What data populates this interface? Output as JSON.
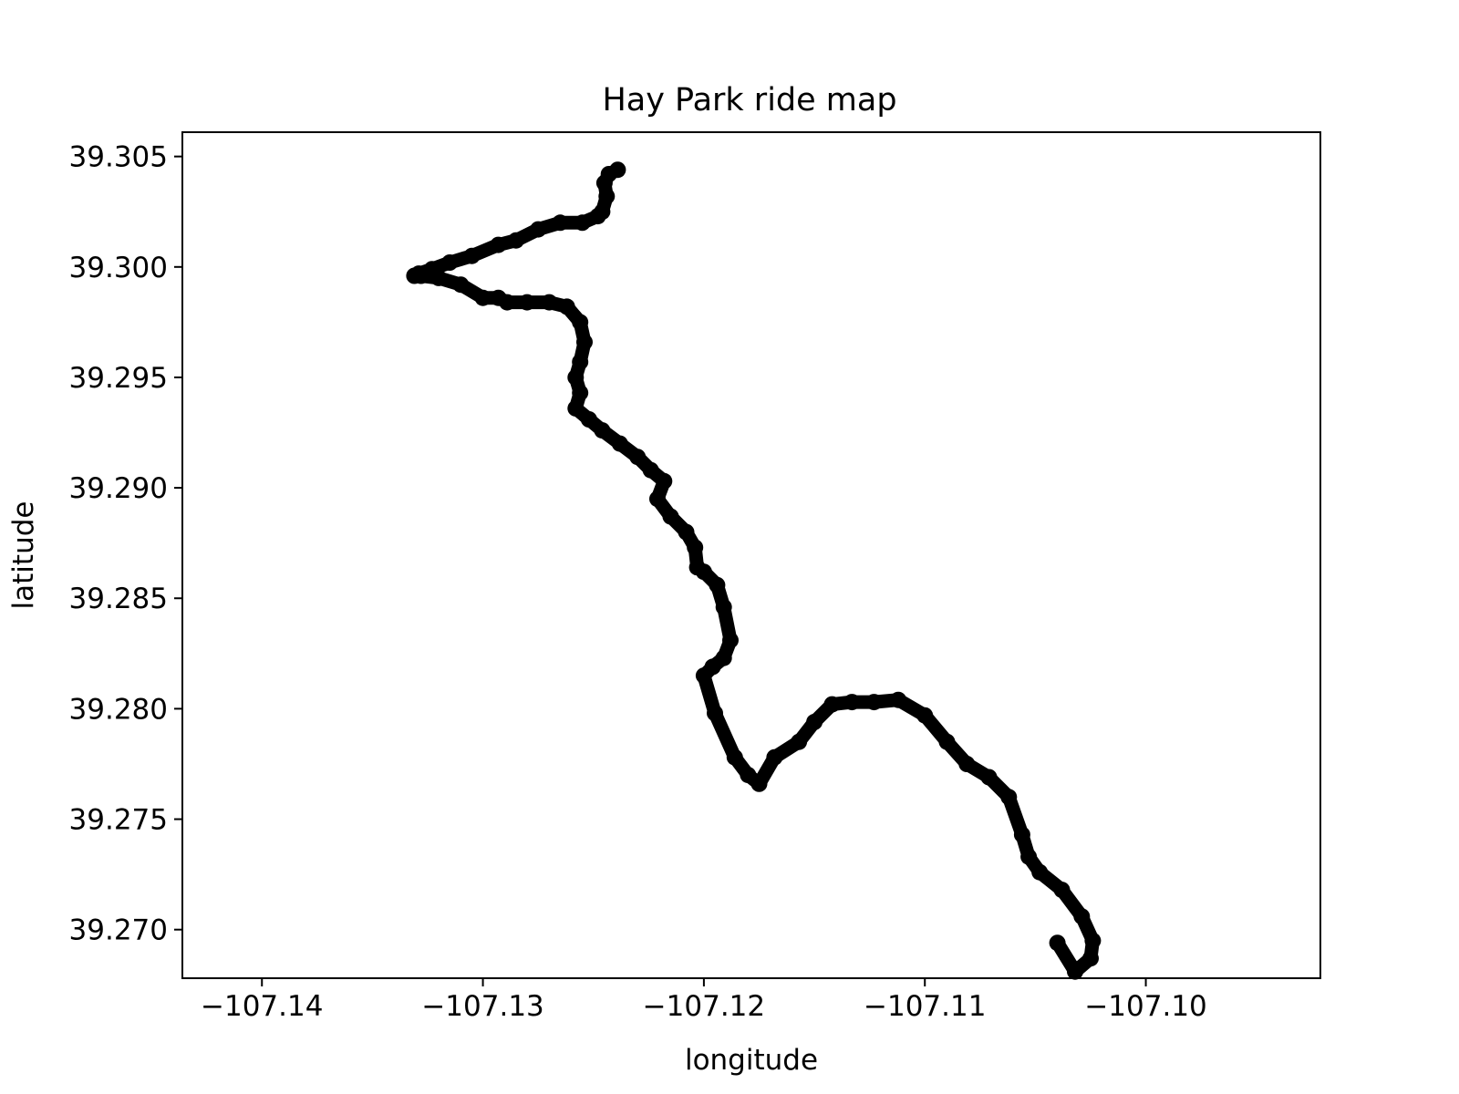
{
  "chart_data": {
    "type": "line",
    "title": "Hay Park ride map",
    "xlabel": "longitude",
    "ylabel": "latitude",
    "xlim": [
      -107.1436,
      -107.0921
    ],
    "ylim": [
      39.2678,
      39.3061
    ],
    "xticks": [
      -107.14,
      -107.13,
      -107.12,
      -107.11,
      -107.1
    ],
    "xtick_labels": [
      "−107.14",
      "−107.13",
      "−107.12",
      "−107.11",
      "−107.10"
    ],
    "yticks": [
      39.27,
      39.275,
      39.28,
      39.285,
      39.29,
      39.295,
      39.3,
      39.305
    ],
    "ytick_labels": [
      "39.270",
      "39.275",
      "39.280",
      "39.285",
      "39.290",
      "39.295",
      "39.300",
      "39.305"
    ],
    "grid": false,
    "legend": false,
    "series": [
      {
        "color": "#000000",
        "x": [
          -107.1239,
          -107.1243,
          -107.1245,
          -107.1244,
          -107.1246,
          -107.1248,
          -107.1255,
          -107.1265,
          -107.1275,
          -107.1285,
          -107.1293,
          -107.1305,
          -107.1315,
          -107.1323,
          -107.1329,
          -107.1331,
          -107.1328,
          -107.132,
          -107.131,
          -107.13,
          -107.1293,
          -107.1289,
          -107.128,
          -107.127,
          -107.1262,
          -107.1256,
          -107.1254,
          -107.1256,
          -107.1258,
          -107.1256,
          -107.1258,
          -107.1252,
          -107.1246,
          -107.1238,
          -107.123,
          -107.1224,
          -107.1218,
          -107.1221,
          -107.1215,
          -107.1208,
          -107.1204,
          -107.1203,
          -107.12,
          -107.1194,
          -107.1191,
          -107.1188,
          -107.1191,
          -107.1196,
          -107.12,
          -107.1195,
          -107.1186,
          -107.118,
          -107.1175,
          -107.1168,
          -107.1157,
          -107.115,
          -107.1142,
          -107.1133,
          -107.1123,
          -107.1112,
          -107.11,
          -107.109,
          -107.1081,
          -107.1071,
          -107.1062,
          -107.1056,
          -107.1053,
          -107.1048,
          -107.1038,
          -107.1029,
          -107.1024,
          -107.1025,
          -107.1032,
          -107.104
        ],
        "y": [
          39.3044,
          39.3042,
          39.3038,
          39.3032,
          39.3025,
          39.3023,
          39.302,
          39.302,
          39.3017,
          39.3012,
          39.301,
          39.3005,
          39.3002,
          39.2999,
          39.2997,
          39.2996,
          39.2996,
          39.2995,
          39.2992,
          39.2986,
          39.2986,
          39.2984,
          39.2984,
          39.2984,
          39.2982,
          39.2975,
          39.2966,
          39.2957,
          39.295,
          39.2943,
          39.2936,
          39.2931,
          39.2926,
          39.292,
          39.2914,
          39.2908,
          39.2903,
          39.2895,
          39.2887,
          39.288,
          39.2873,
          39.2864,
          39.2862,
          39.2856,
          39.2846,
          39.2831,
          39.2823,
          39.2819,
          39.2815,
          39.2798,
          39.2778,
          39.277,
          39.2766,
          39.2778,
          39.2785,
          39.2794,
          39.2802,
          39.2803,
          39.2803,
          39.2804,
          39.2797,
          39.2785,
          39.2775,
          39.2769,
          39.276,
          39.2743,
          39.2733,
          39.2726,
          39.2718,
          39.2706,
          39.2695,
          39.2687,
          39.2681,
          39.2694
        ]
      }
    ]
  }
}
